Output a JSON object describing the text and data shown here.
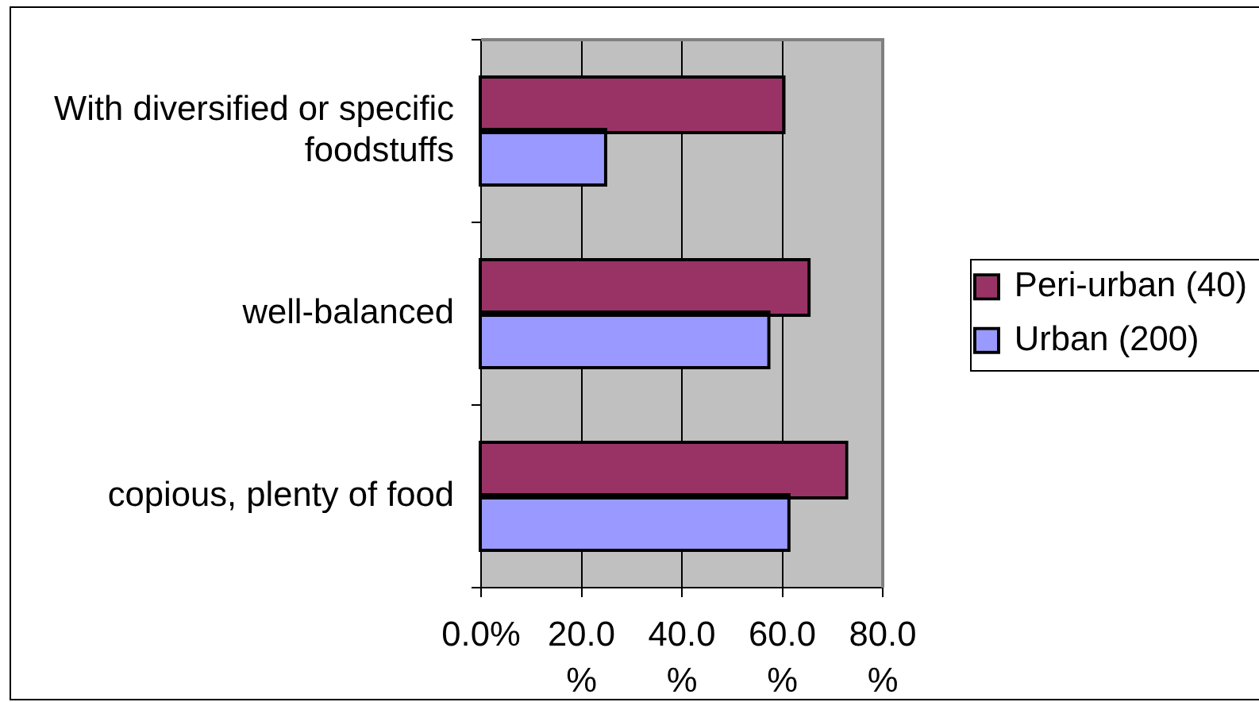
{
  "chart_data": {
    "type": "bar",
    "orientation": "horizontal",
    "categories": [
      "With diversified or specific foodstuffs",
      "well-balanced",
      "copious, plenty of food"
    ],
    "series": [
      {
        "name": "Peri-urban (40)",
        "color": "#993366",
        "values": [
          60,
          65,
          72.5
        ]
      },
      {
        "name": "Urban (200)",
        "color": "#9999ff",
        "values": [
          24.5,
          57,
          61
        ]
      }
    ],
    "xlim": [
      0,
      80
    ],
    "xticks": [
      {
        "value": 0,
        "label": "0.0%"
      },
      {
        "value": 20,
        "label": "20.0%"
      },
      {
        "value": 40,
        "label": "40.0%"
      },
      {
        "value": 60,
        "label": "60.0%"
      },
      {
        "value": 80,
        "label": "80.0%"
      }
    ],
    "grid": "x",
    "legend": "right"
  }
}
